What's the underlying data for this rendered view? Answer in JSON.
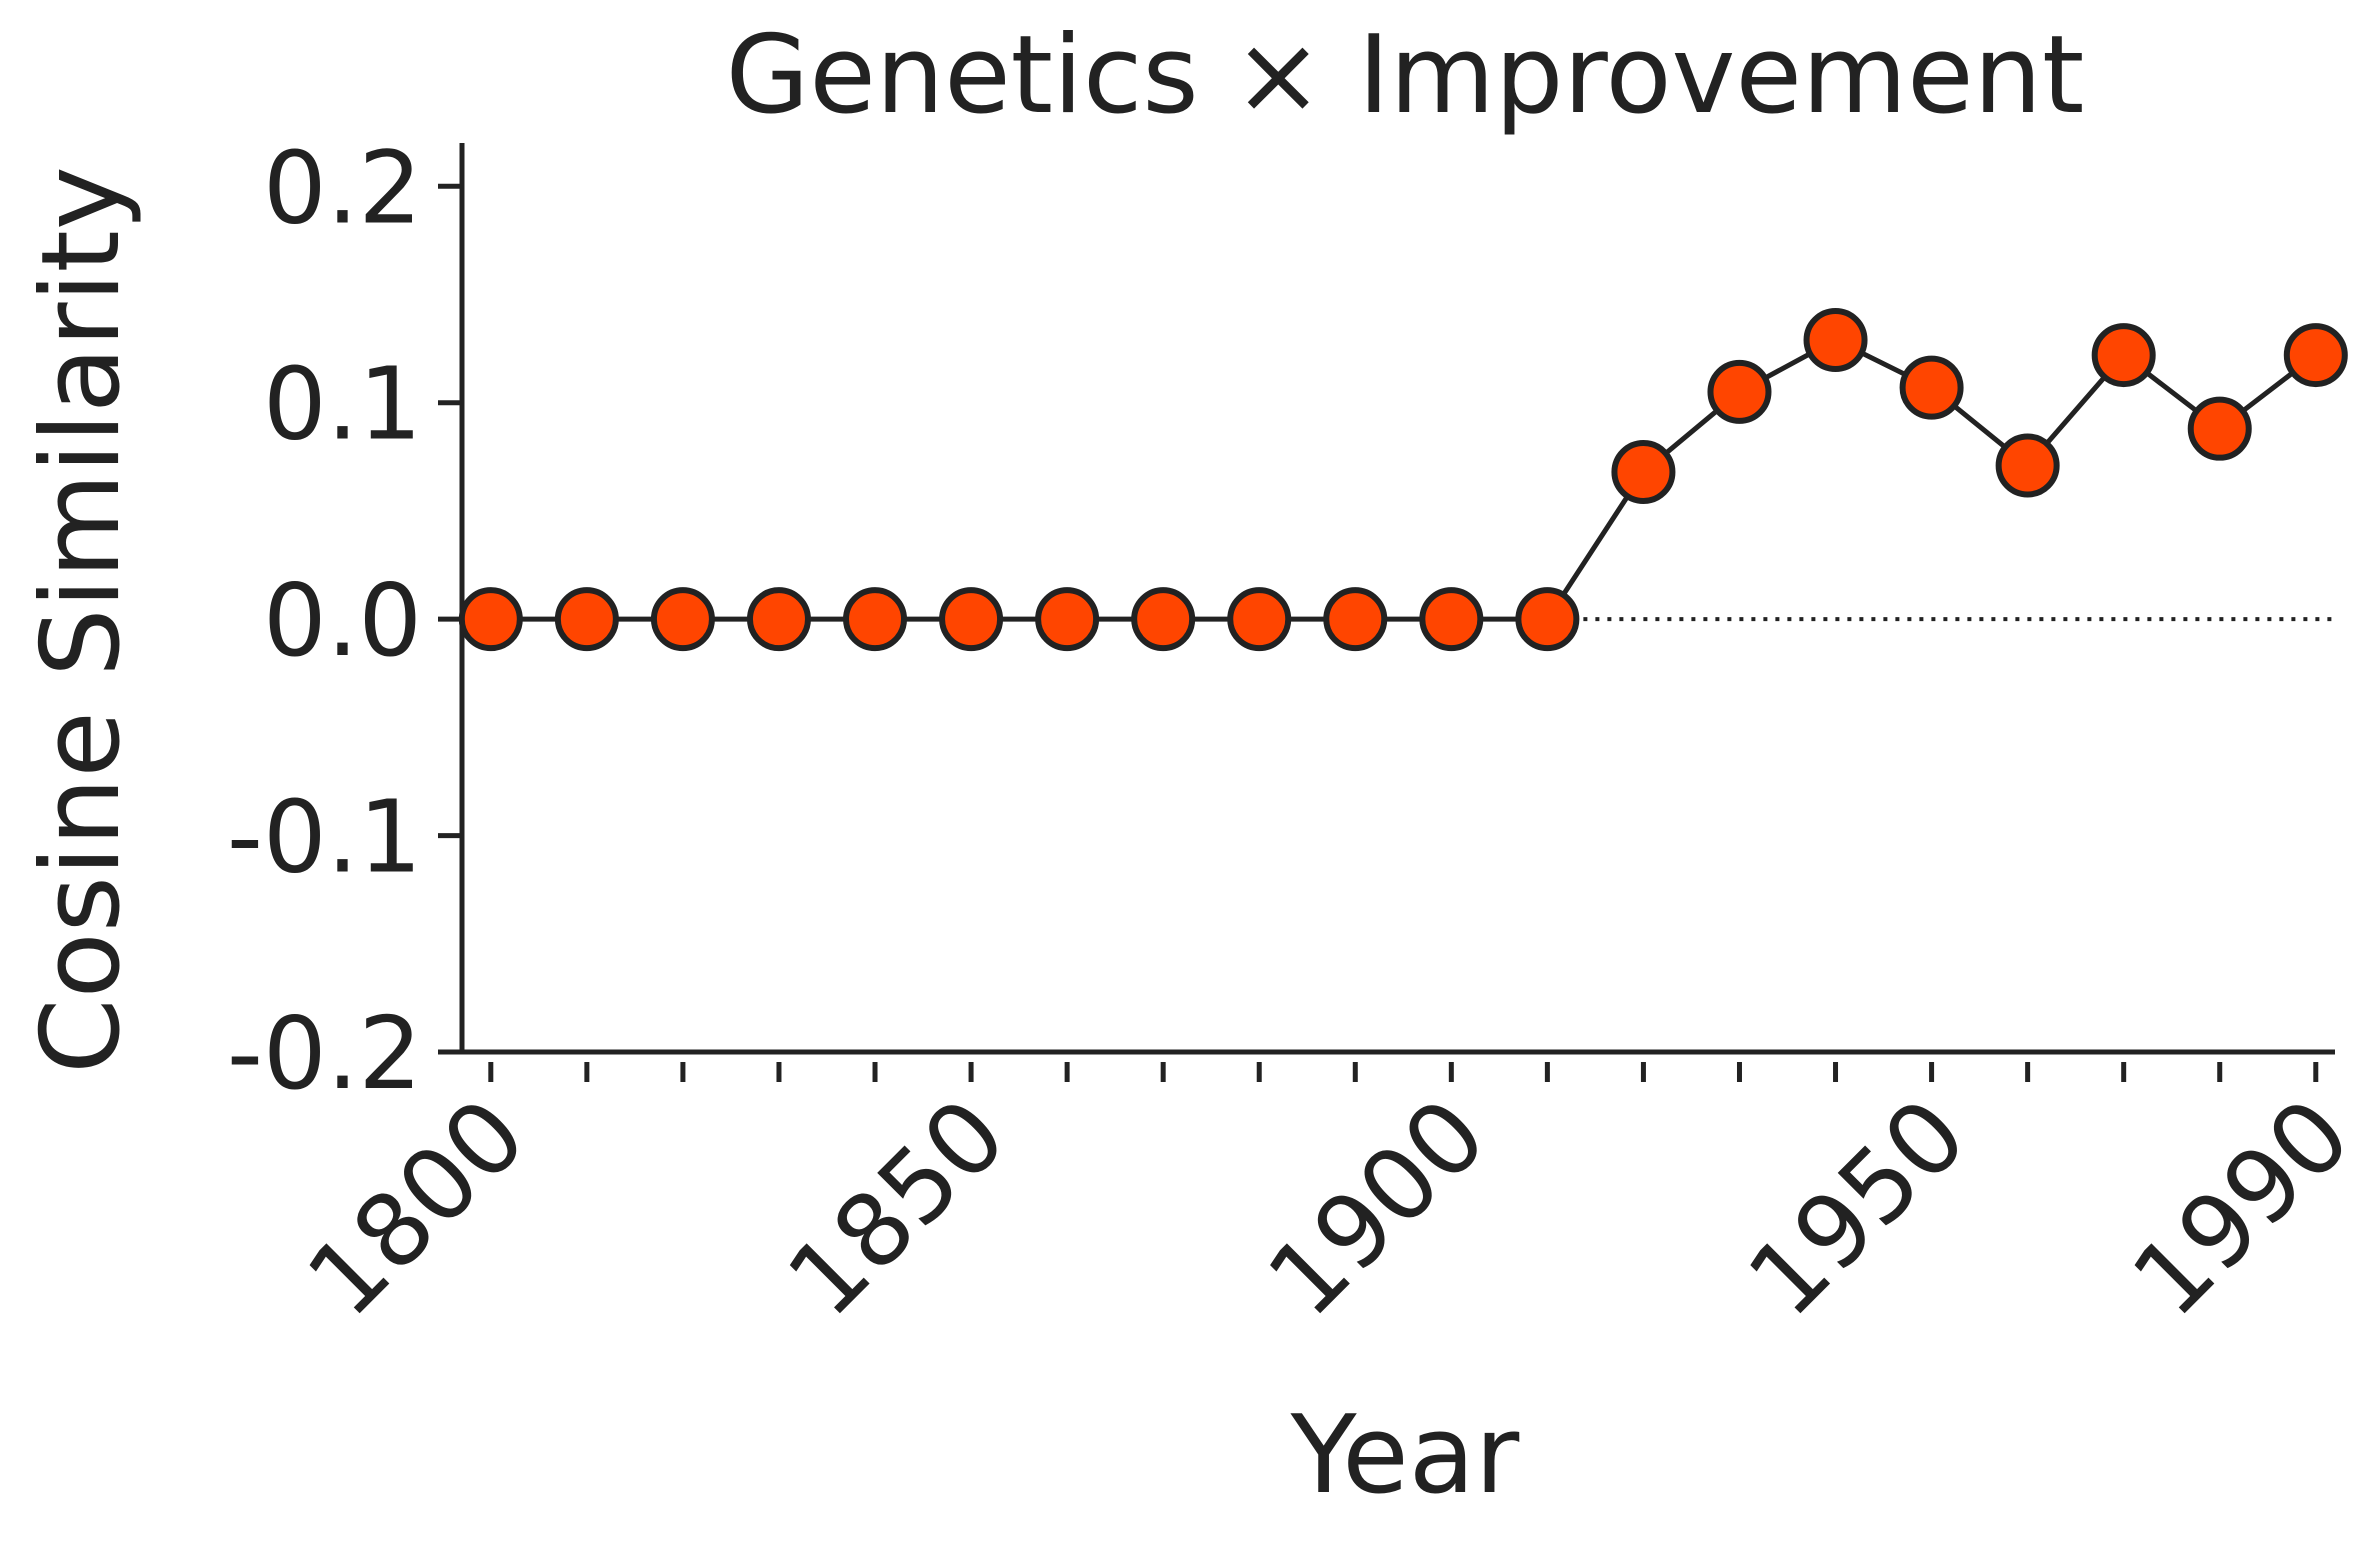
{
  "chart_data": {
    "type": "line",
    "title": "Genetics × Improvement",
    "xlabel": "Year",
    "ylabel": "Cosine Similarity",
    "xlim": [
      1797,
      1992
    ],
    "ylim": [
      -0.2,
      0.22
    ],
    "xticks_major": [
      1800,
      1850,
      1900,
      1950,
      1990
    ],
    "xticks_major_labels": [
      "1800",
      "1850",
      "1900",
      "1950",
      "1990"
    ],
    "xticks_minor": [
      1800,
      1810,
      1820,
      1830,
      1840,
      1850,
      1860,
      1870,
      1880,
      1890,
      1900,
      1910,
      1920,
      1930,
      1940,
      1950,
      1960,
      1970,
      1980,
      1990
    ],
    "yticks": [
      0.2,
      0.1,
      0.0,
      -0.1,
      -0.2
    ],
    "ytick_labels": [
      "0.2",
      "0.1",
      "0.0",
      "-0.1",
      "-0.2"
    ],
    "reference_line": {
      "y": 0,
      "style": "dotted",
      "from_x": 1910
    },
    "grid": false,
    "legend": "none",
    "series": [
      {
        "x": [
          1800,
          1810,
          1820,
          1830,
          1840,
          1850,
          1860,
          1870,
          1880,
          1890,
          1900,
          1910,
          1920,
          1930,
          1940,
          1950,
          1960,
          1970,
          1980,
          1990
        ],
        "values": [
          0,
          0,
          0,
          0,
          0,
          0,
          0,
          0,
          0,
          0,
          0,
          0,
          0.068,
          0.105,
          0.129,
          0.107,
          0.071,
          0.122,
          0.088,
          0.122
        ]
      }
    ],
    "colors": {
      "marker_fill": "#ff4500",
      "line": "#222222",
      "text": "#222222"
    }
  }
}
